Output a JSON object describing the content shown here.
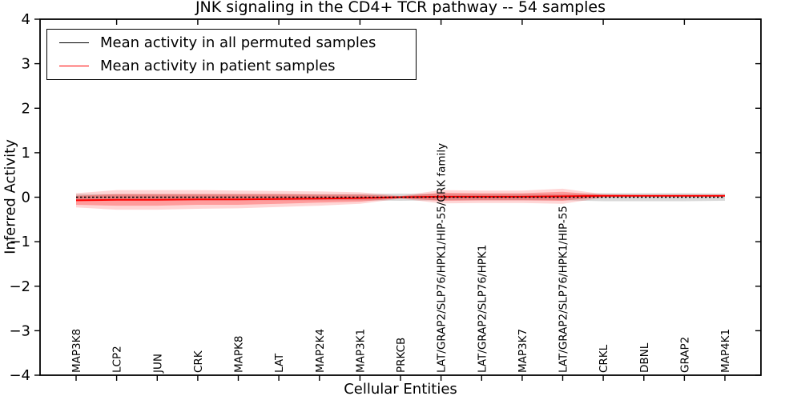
{
  "chart_data": {
    "type": "line",
    "title": "JNK signaling in the CD4+ TCR pathway -- 54 samples",
    "xlabel": "Cellular Entities",
    "ylabel": "Inferred Activity",
    "ylim": [
      -4,
      4
    ],
    "yticks": [
      -4,
      -3,
      -2,
      -1,
      0,
      1,
      2,
      3,
      4
    ],
    "grid": false,
    "legend_position": "upper left",
    "categories": [
      "MAP3K8",
      "LCP2",
      "JUN",
      "CRK",
      "MAPK8",
      "LAT",
      "MAP2K4",
      "MAP3K1",
      "PRKCB",
      "LAT/GRAP2/SLP76/HPK1/HIP-55/CRK family",
      "LAT/GRAP2/SLP76/HPK1",
      "MAP3K7",
      "LAT/GRAP2/SLP76/HPK1/HIP-55",
      "CRKL",
      "DBNL",
      "GRAP2",
      "MAP4K1"
    ],
    "series": [
      {
        "name": "Mean activity in all permuted samples",
        "color": "#000000",
        "line_style": "dashed",
        "values": [
          0,
          0,
          0,
          0,
          0,
          0,
          0,
          0,
          0,
          0,
          0,
          0,
          0,
          0,
          0,
          0,
          0
        ],
        "band": [
          0.07,
          0.07,
          0.07,
          0.07,
          0.07,
          0.07,
          0.07,
          0.07,
          0.08,
          0.07,
          0.07,
          0.07,
          0.07,
          0.09,
          0.09,
          0.09,
          0.08
        ]
      },
      {
        "name": "Mean activity in patient samples",
        "color": "#ff0000",
        "line_style": "solid",
        "values": [
          -0.07,
          -0.06,
          -0.06,
          -0.05,
          -0.05,
          -0.04,
          -0.03,
          -0.02,
          0,
          0.01,
          0.01,
          0.01,
          0.02,
          0.03,
          0.03,
          0.03,
          0.03
        ],
        "band_outer": [
          0.16,
          0.22,
          0.22,
          0.21,
          0.2,
          0.18,
          0.16,
          0.13,
          0.03,
          0.15,
          0.14,
          0.14,
          0.17,
          0.04,
          0.02,
          0.02,
          0.02
        ],
        "band_inner": [
          0.1,
          0.13,
          0.13,
          0.12,
          0.12,
          0.11,
          0.09,
          0.08,
          0.02,
          0.09,
          0.08,
          0.08,
          0.1,
          0.02,
          0.01,
          0.01,
          0.01
        ]
      }
    ],
    "styles": {
      "axis_color": "#000000",
      "permuted_band_color": "#aaaaaa",
      "permuted_band_opacity": 0.45,
      "patient_band_opacity_outer": 0.16,
      "patient_band_opacity_inner": 0.27
    }
  }
}
